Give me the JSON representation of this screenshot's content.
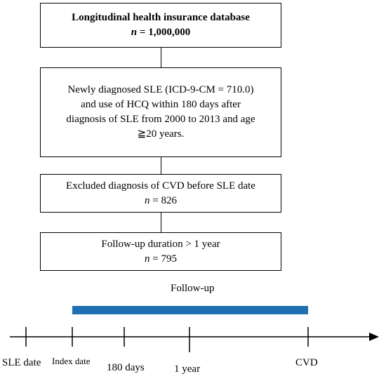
{
  "boxes": [
    {
      "id": "database",
      "title": "Longitudinal health insurance database",
      "n_prefix": "n",
      "n_text": " = 1,000,000"
    },
    {
      "id": "inclusion",
      "lines": [
        "Newly diagnosed SLE (ICD-9-CM = 710.0)",
        "and use of HCQ within 180 days after",
        "diagnosis of SLE from 2000 to 2013 and age",
        "≧20 years."
      ]
    },
    {
      "id": "exclusion",
      "text": "Excluded diagnosis of CVD before SLE date",
      "n_prefix": "n",
      "n_text": " = 826"
    },
    {
      "id": "followup",
      "text": "Follow-up duration > 1 year",
      "n_prefix": "n",
      "n_text": " = 795"
    }
  ],
  "timeline": {
    "followup_label": "Follow-up",
    "ticks": [
      "SLE date",
      "Index date",
      "180 days",
      "1 year",
      "CVD"
    ],
    "bar_color": "#1f6fb2"
  }
}
